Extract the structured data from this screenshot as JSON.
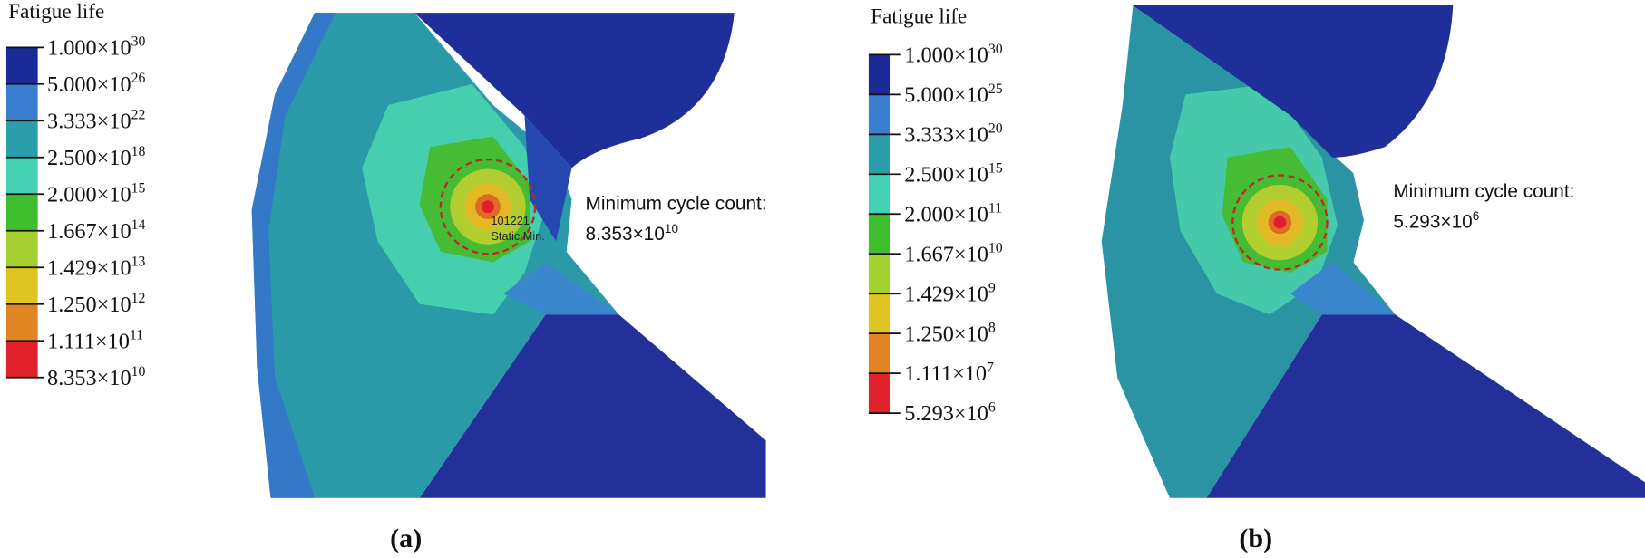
{
  "panels": [
    {
      "legend_title": "Fatigue life",
      "legend_labels": [
        {
          "base": "1.000×10",
          "exponent": "30"
        },
        {
          "base": "5.000×10",
          "exponent": "26"
        },
        {
          "base": "3.333×10",
          "exponent": "22"
        },
        {
          "base": "2.500×10",
          "exponent": "18"
        },
        {
          "base": "2.000×10",
          "exponent": "15"
        },
        {
          "base": "1.667×10",
          "exponent": "14"
        },
        {
          "base": "1.429×10",
          "exponent": "13"
        },
        {
          "base": "1.250×10",
          "exponent": "12"
        },
        {
          "base": "1.111×10",
          "exponent": "11"
        },
        {
          "base": "8.353×10",
          "exponent": "10"
        }
      ],
      "annotation": {
        "label": "Minimum cycle count:",
        "base": "8.353×10",
        "exponent": "10"
      },
      "marker_labels": [
        "101221",
        "Static Min."
      ],
      "caption": "(a)"
    },
    {
      "legend_title": "Fatigue life",
      "legend_labels": [
        {
          "base": "1.000×10",
          "exponent": "30"
        },
        {
          "base": "5.000×10",
          "exponent": "25"
        },
        {
          "base": "3.333×10",
          "exponent": "20"
        },
        {
          "base": "2.500×10",
          "exponent": "15"
        },
        {
          "base": "2.000×10",
          "exponent": "11"
        },
        {
          "base": "1.667×10",
          "exponent": "10"
        },
        {
          "base": "1.429×10",
          "exponent": "9"
        },
        {
          "base": "1.250×10",
          "exponent": "8"
        },
        {
          "base": "1.111×10",
          "exponent": "7"
        },
        {
          "base": "5.293×10",
          "exponent": "6"
        }
      ],
      "annotation": {
        "label": "Minimum cycle count:",
        "base": "5.293×10",
        "exponent": "6"
      },
      "marker_labels": [],
      "caption": "(b)"
    }
  ]
}
